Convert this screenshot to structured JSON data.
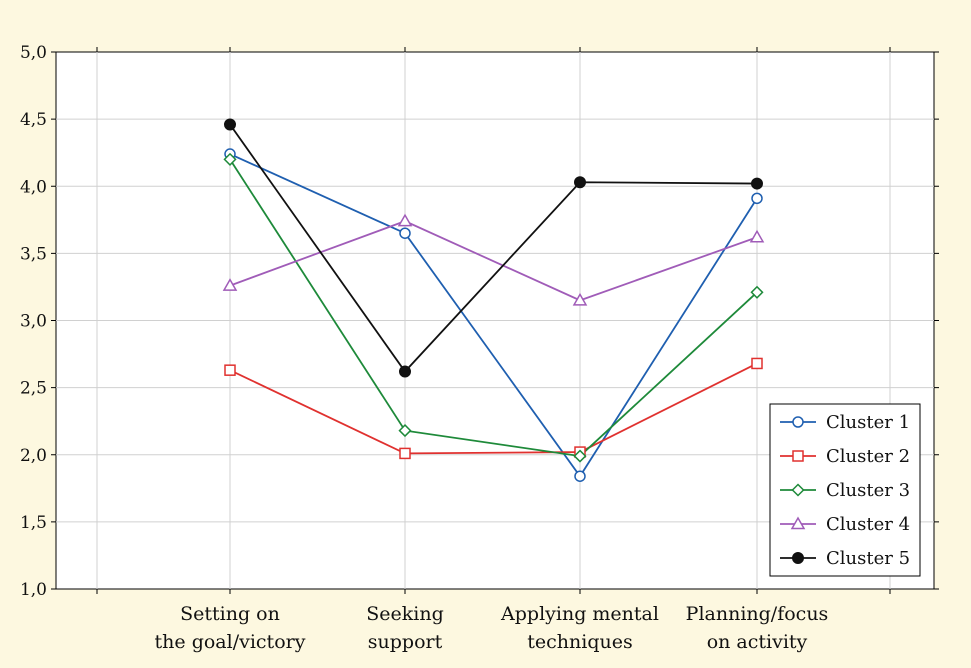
{
  "chart_data": {
    "type": "line",
    "title": "",
    "xlabel": "",
    "ylabel": "",
    "categories": [
      [
        "Setting on",
        "the goal/victory"
      ],
      [
        "Seeking",
        "support"
      ],
      [
        "Applying mental",
        "techniques"
      ],
      [
        "Planning/focus",
        "on activity"
      ]
    ],
    "ylim": [
      1.0,
      5.0
    ],
    "y_ticks": [
      "1,0",
      "1,5",
      "2,0",
      "2,5",
      "3,0",
      "3,5",
      "4,0",
      "4,5",
      "5,0"
    ],
    "grid": true,
    "legend_position": "bottom-right",
    "series": [
      {
        "name": "Cluster 1",
        "color": "#1f5fb0",
        "marker": "circle-open",
        "values": [
          4.24,
          3.65,
          1.84,
          3.91
        ]
      },
      {
        "name": "Cluster 2",
        "color": "#e0312f",
        "marker": "square-open",
        "values": [
          2.63,
          2.01,
          2.02,
          2.68
        ]
      },
      {
        "name": "Cluster 3",
        "color": "#1e8a3a",
        "marker": "diamond-open",
        "values": [
          4.2,
          2.18,
          1.99,
          3.21
        ]
      },
      {
        "name": "Cluster 4",
        "color": "#a05cb8",
        "marker": "triangle-open",
        "values": [
          3.26,
          3.74,
          3.15,
          3.62
        ]
      },
      {
        "name": "Cluster 5",
        "color": "#111111",
        "marker": "circle-filled",
        "values": [
          4.46,
          2.62,
          4.03,
          4.02
        ]
      }
    ]
  }
}
